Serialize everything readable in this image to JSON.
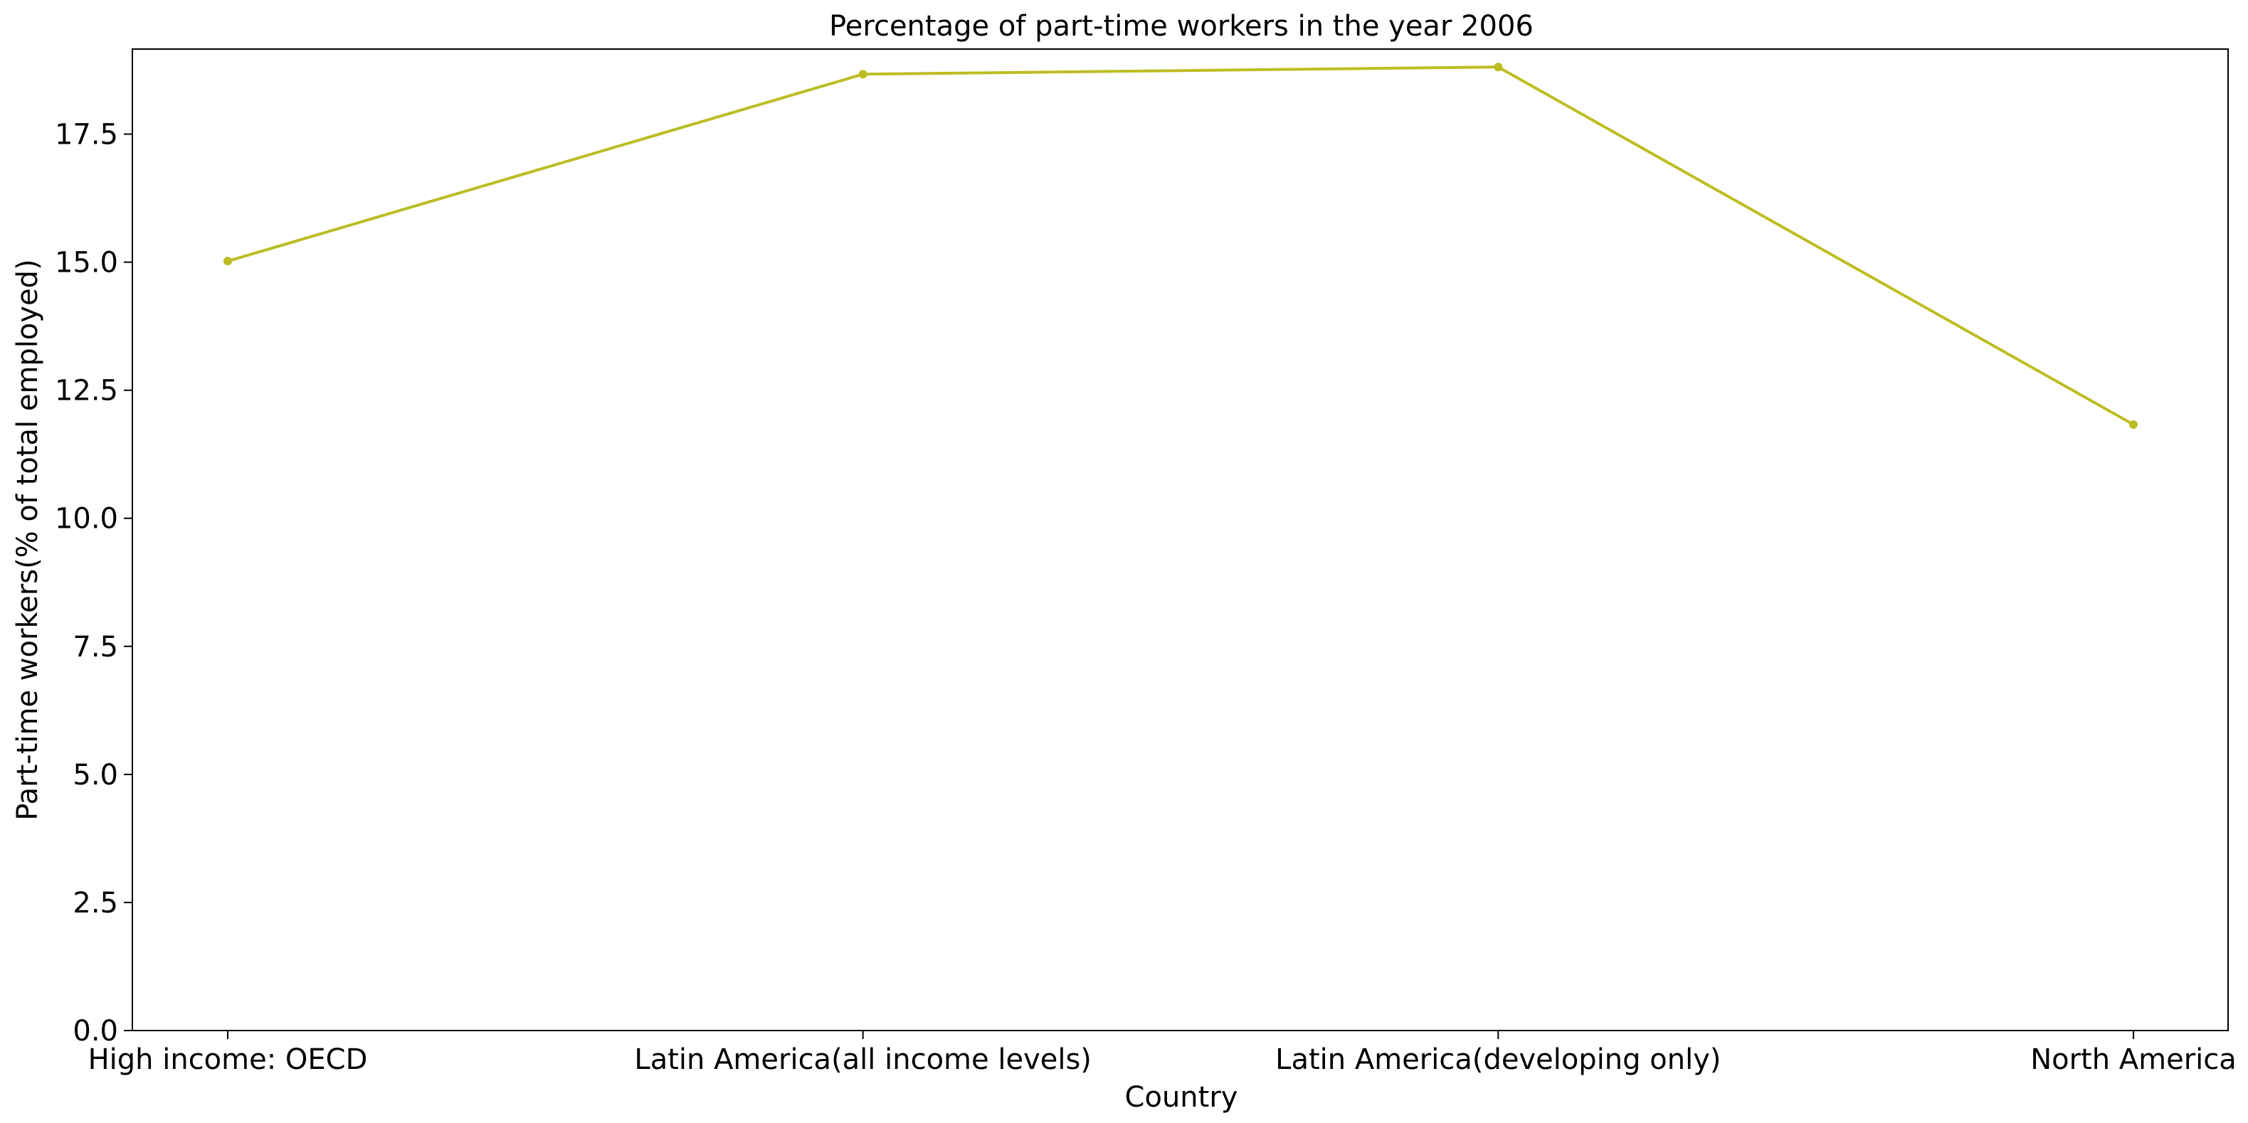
{
  "chart_data": {
    "type": "line",
    "title": "Percentage of part-time workers in the year 2006",
    "xlabel": "Country",
    "ylabel": "Part-time workers(% of total employed)",
    "categories": [
      "High income: OECD",
      "Latin America(all income levels)",
      "Latin America(developing only)",
      "North America"
    ],
    "series": [
      {
        "values": [
          15.02,
          18.67,
          18.81,
          11.83
        ],
        "color": "#bcbd22"
      }
    ],
    "ylim": [
      0,
      19.16
    ],
    "yticks": [
      0.0,
      2.5,
      5.0,
      7.5,
      10.0,
      12.5,
      15.0,
      17.5
    ],
    "ytick_labels": [
      "0.0",
      "2.5",
      "5.0",
      "7.5",
      "10.0",
      "12.5",
      "15.0",
      "17.5"
    ],
    "grid": false,
    "legend": "none"
  }
}
